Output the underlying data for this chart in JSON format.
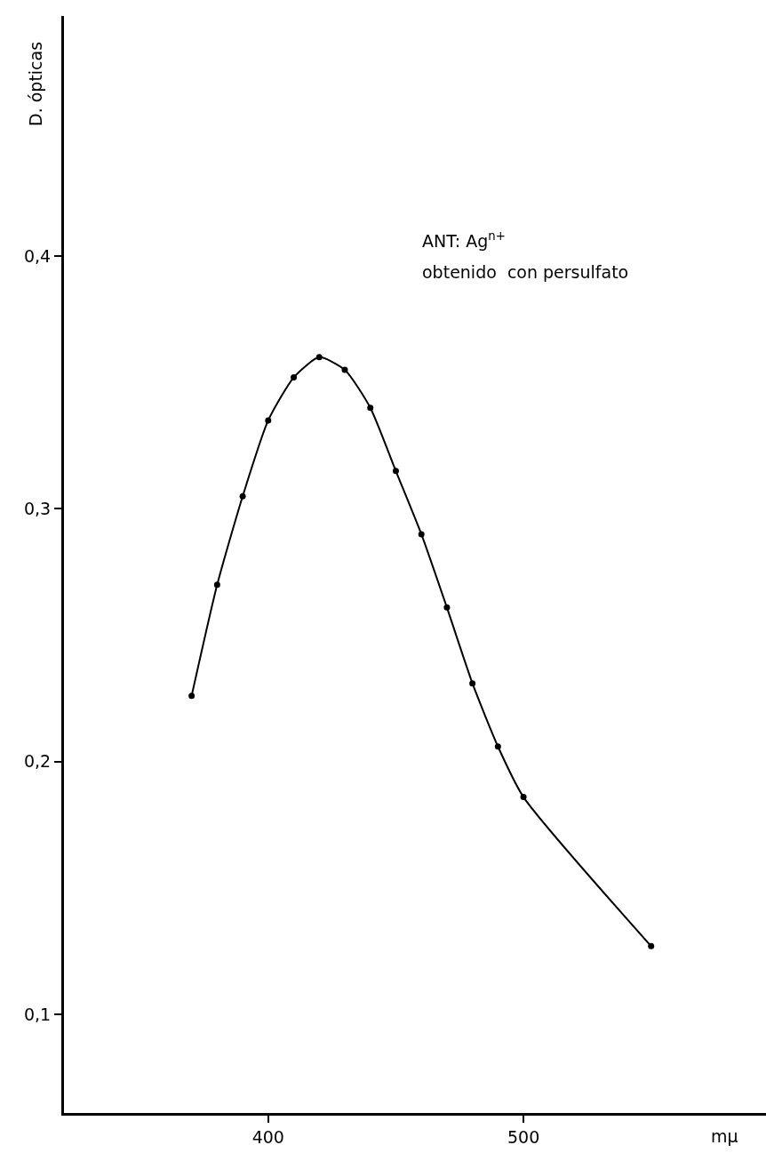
{
  "chart_data": {
    "type": "line",
    "xlabel": "mμ",
    "ylabel": "D. ópticas",
    "x": [
      370,
      380,
      390,
      400,
      410,
      420,
      430,
      440,
      450,
      460,
      470,
      480,
      490,
      500,
      550
    ],
    "series": [
      {
        "color": "#000000",
        "values": [
          0.226,
          0.27,
          0.305,
          0.335,
          0.352,
          0.36,
          0.355,
          0.34,
          0.315,
          0.29,
          0.261,
          0.231,
          0.206,
          0.186,
          0.127
        ]
      }
    ],
    "xlim": [
      320,
      595
    ],
    "xticks": [
      400,
      500
    ],
    "ylim": [
      0.061,
      0.495
    ],
    "yticks": [
      {
        "value": 0.1,
        "label": "0,1"
      },
      {
        "value": 0.2,
        "label": "0,2"
      },
      {
        "value": 0.3,
        "label": "0,3"
      },
      {
        "value": 0.4,
        "label": "0,4"
      }
    ],
    "annotations": [
      "ANT: Ag$^{n+}$",
      "obtenido  con persulfato"
    ],
    "grid": false,
    "marker": "circle",
    "line_style": "solid"
  }
}
